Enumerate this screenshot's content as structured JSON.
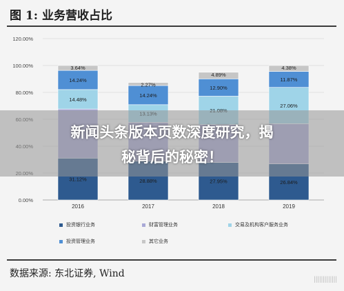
{
  "figure": {
    "title": "图 1:  业务营收占比",
    "source": "数据来源:  东北证券, Wind"
  },
  "chart_data": {
    "type": "bar",
    "stacked": true,
    "categories": [
      "2016",
      "2017",
      "2018",
      "2019"
    ],
    "y_ticks": [
      "0.00%",
      "20.00%",
      "40.00%",
      "60.00%",
      "80.00%",
      "100.00%",
      "120.00%"
    ],
    "ylim": [
      0,
      120
    ],
    "grid": true,
    "legend_position": "bottom",
    "series": [
      {
        "name": "投资银行业务",
        "color": "#2e5a8f",
        "values": [
          31.12,
          28.88,
          27.95,
          26.84
        ],
        "labels": [
          "31.12%",
          "28.88%",
          "27.95%",
          "26.84%"
        ]
      },
      {
        "name": "财富管理业务",
        "color": "#a9a9d6",
        "values": [
          36.52,
          28.86,
          28.16,
          29.85
        ],
        "labels": [
          "",
          "",
          "",
          ""
        ]
      },
      {
        "name": "交易及机构客户服务业务",
        "color": "#9fd4e8",
        "values": [
          14.48,
          13.13,
          21.08,
          27.06
        ],
        "labels": [
          "14.48%",
          "13.13%",
          "21.08%",
          "27.06%"
        ]
      },
      {
        "name": "投资管理业务",
        "color": "#4f8fd4",
        "values": [
          14.24,
          14.24,
          12.9,
          11.87
        ],
        "labels": [
          "14.24%",
          "14.24%",
          "12.90%",
          "11.87%"
        ]
      },
      {
        "name": "其它业务",
        "color": "#c6c6c6",
        "values": [
          3.64,
          2.27,
          4.89,
          4.38
        ],
        "labels": [
          "3.64%",
          "2.27%",
          "4.89%",
          "4.38%"
        ]
      }
    ]
  },
  "overlay": {
    "line1": "新闻头条版本页数深度研究，揭",
    "line2": "秘背后的秘密！"
  },
  "watermark": "|||||||||||||"
}
